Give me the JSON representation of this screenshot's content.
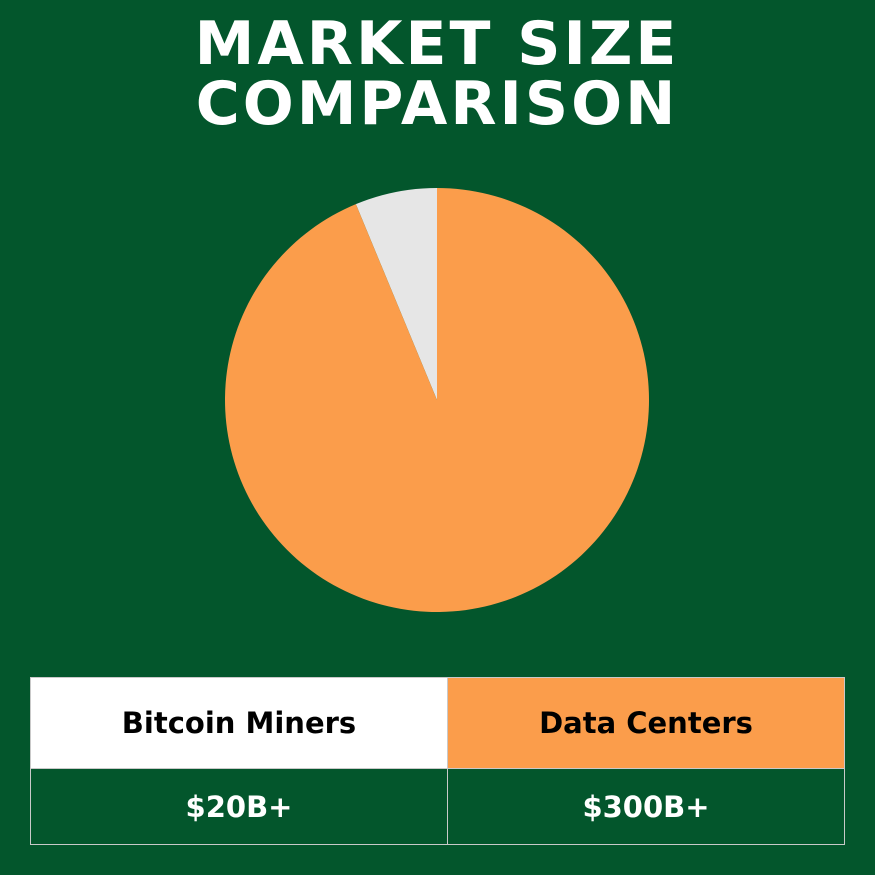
{
  "chart_data": {
    "type": "pie",
    "title": "MARKET SIZE COMPARISON",
    "categories": [
      "Bitcoin Miners",
      "Data Centers"
    ],
    "values": [
      20,
      300
    ],
    "value_labels": [
      "$20B+",
      "$300B+"
    ],
    "colors": [
      "#e6e6e6",
      "#fb9d4b"
    ],
    "header_colors": [
      "#ffffff",
      "#fb9d4b"
    ]
  }
}
